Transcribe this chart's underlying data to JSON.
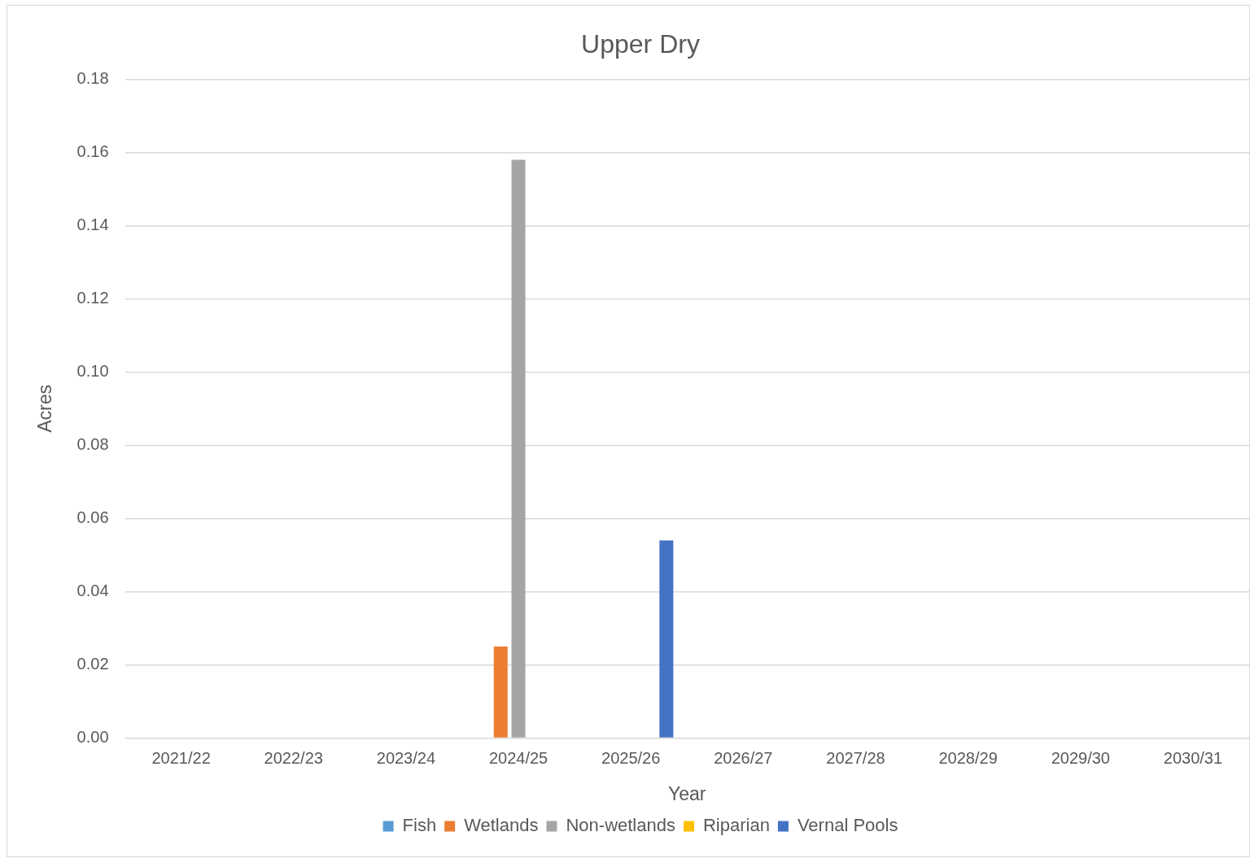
{
  "chart_data": {
    "type": "bar",
    "title": "Upper Dry",
    "xlabel": "Year",
    "ylabel": "Acres",
    "categories": [
      "2021/22",
      "2022/23",
      "2023/24",
      "2024/25",
      "2025/26",
      "2026/27",
      "2027/28",
      "2028/29",
      "2029/30",
      "2030/31"
    ],
    "series": [
      {
        "name": "Fish",
        "color": "#5b9bd5",
        "values": [
          null,
          null,
          null,
          null,
          null,
          null,
          null,
          null,
          null,
          null
        ]
      },
      {
        "name": "Wetlands",
        "color": "#ed7d31",
        "values": [
          null,
          null,
          null,
          0.025,
          null,
          null,
          null,
          null,
          null,
          null
        ]
      },
      {
        "name": "Non-wetlands",
        "color": "#a5a5a5",
        "values": [
          null,
          null,
          null,
          0.158,
          null,
          null,
          null,
          null,
          null,
          null
        ]
      },
      {
        "name": "Riparian",
        "color": "#ffc000",
        "values": [
          null,
          null,
          null,
          null,
          null,
          null,
          null,
          null,
          null,
          null
        ]
      },
      {
        "name": "Vernal Pools",
        "color": "#4472c4",
        "values": [
          null,
          null,
          null,
          null,
          0.054,
          null,
          null,
          null,
          null,
          null
        ]
      }
    ],
    "ylim": [
      0,
      0.18
    ],
    "yticks": [
      {
        "value": 0,
        "label": "0.00"
      },
      {
        "value": 0.02,
        "label": "0.02"
      },
      {
        "value": 0.04,
        "label": "0.04"
      },
      {
        "value": 0.06,
        "label": "0.06"
      },
      {
        "value": 0.08,
        "label": "0.08"
      },
      {
        "value": 0.1,
        "label": "0.10"
      },
      {
        "value": 0.12,
        "label": "0.12"
      },
      {
        "value": 0.14,
        "label": "0.14"
      },
      {
        "value": 0.16,
        "label": "0.16"
      },
      {
        "value": 0.18,
        "label": "0.18"
      }
    ],
    "grid": "y",
    "legend": "bottom"
  }
}
